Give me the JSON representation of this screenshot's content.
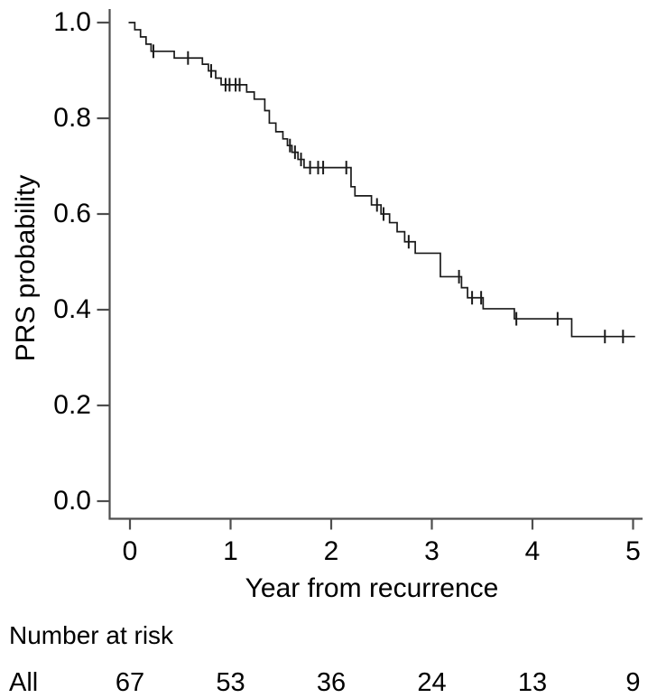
{
  "chart_data": {
    "type": "line",
    "subtype": "kaplan-meier-step",
    "title": "",
    "xlabel": "Year from recurrence",
    "ylabel": "PRS probability",
    "xlim": [
      0,
      5.1
    ],
    "ylim": [
      0.0,
      1.0
    ],
    "xtick_labels": [
      "0",
      "1",
      "2",
      "3",
      "4",
      "5"
    ],
    "ytick_labels": [
      "0.0",
      "0.2",
      "0.4",
      "0.6",
      "0.8",
      "1.0"
    ],
    "grid": false,
    "legend_position": "none",
    "curve_color": "#1a1a1a",
    "axis_color": "#4e4e4e",
    "series": [
      {
        "name": "All",
        "step_points": [
          [
            0.0,
            1.0
          ],
          [
            0.048,
            0.985
          ],
          [
            0.105,
            0.97
          ],
          [
            0.16,
            0.955
          ],
          [
            0.21,
            0.94
          ],
          [
            0.44,
            0.926
          ],
          [
            0.72,
            0.913
          ],
          [
            0.78,
            0.899
          ],
          [
            0.852,
            0.884
          ],
          [
            0.906,
            0.87
          ],
          [
            1.16,
            0.855
          ],
          [
            1.235,
            0.84
          ],
          [
            1.34,
            0.816
          ],
          [
            1.385,
            0.79
          ],
          [
            1.45,
            0.772
          ],
          [
            1.52,
            0.757
          ],
          [
            1.565,
            0.743
          ],
          [
            1.61,
            0.729
          ],
          [
            1.67,
            0.714
          ],
          [
            1.73,
            0.697
          ],
          [
            2.197,
            0.657
          ],
          [
            2.236,
            0.638
          ],
          [
            2.4,
            0.619
          ],
          [
            2.495,
            0.6
          ],
          [
            2.58,
            0.582
          ],
          [
            2.655,
            0.563
          ],
          [
            2.73,
            0.542
          ],
          [
            2.835,
            0.518
          ],
          [
            3.085,
            0.469
          ],
          [
            3.295,
            0.446
          ],
          [
            3.355,
            0.425
          ],
          [
            3.51,
            0.402
          ],
          [
            3.82,
            0.381
          ],
          [
            4.39,
            0.344
          ]
        ],
        "end_time": 5.02,
        "censor_marks": [
          [
            0.233,
            0.94
          ],
          [
            0.577,
            0.926
          ],
          [
            0.807,
            0.899
          ],
          [
            0.95,
            0.87
          ],
          [
            0.99,
            0.87
          ],
          [
            1.05,
            0.87
          ],
          [
            1.09,
            0.87
          ],
          [
            1.59,
            0.743
          ],
          [
            1.64,
            0.729
          ],
          [
            1.7,
            0.714
          ],
          [
            1.79,
            0.697
          ],
          [
            1.87,
            0.697
          ],
          [
            1.92,
            0.697
          ],
          [
            2.15,
            0.697
          ],
          [
            2.455,
            0.619
          ],
          [
            2.52,
            0.6
          ],
          [
            2.77,
            0.542
          ],
          [
            3.27,
            0.469
          ],
          [
            3.4,
            0.425
          ],
          [
            3.49,
            0.425
          ],
          [
            3.84,
            0.381
          ],
          [
            4.25,
            0.381
          ],
          [
            4.72,
            0.344
          ],
          [
            4.9,
            0.344
          ]
        ]
      }
    ]
  },
  "risk_table": {
    "title": "Number at risk",
    "time_points": [
      0,
      1,
      2,
      3,
      4,
      5
    ],
    "rows": [
      {
        "label": "All",
        "values": [
          "67",
          "53",
          "36",
          "24",
          "13",
          "9"
        ]
      }
    ]
  }
}
